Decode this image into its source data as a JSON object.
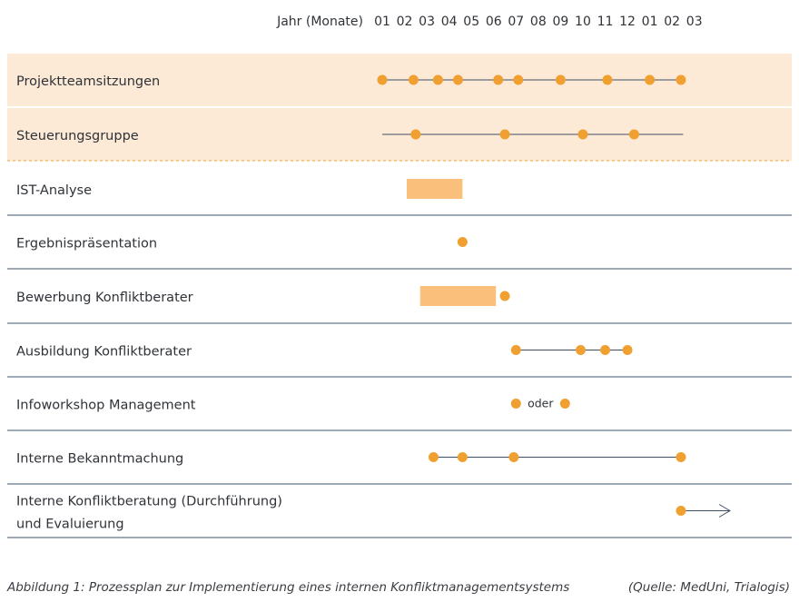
{
  "header": {
    "axis_label": "Jahr (Monate)",
    "months": [
      "01",
      "02",
      "03",
      "04",
      "05",
      "06",
      "07",
      "08",
      "09",
      "10",
      "11",
      "12",
      "01",
      "02",
      "03"
    ]
  },
  "colors": {
    "accent": "#f0a030",
    "highlight_band": "#fce9d6",
    "bar_fill": "#f9bf7b",
    "line": "#3f4e63",
    "divider": "#3f5670",
    "dashed": "#f0a030"
  },
  "rows": [
    {
      "label": "Projektteamsitzungen",
      "highlight": true,
      "line": [
        1,
        14.4
      ],
      "dots": [
        1,
        2.4,
        3.5,
        4.4,
        6.2,
        7.1,
        9.0,
        11.1,
        13.0,
        14.4
      ],
      "bars": []
    },
    {
      "label": "Steuerungsgruppe",
      "highlight": true,
      "line": [
        1,
        14.5
      ],
      "dots": [
        2.5,
        6.5,
        10.0,
        12.3
      ],
      "bars": []
    },
    {
      "label": "IST-Analyse",
      "highlight": false,
      "line": null,
      "dots": [],
      "bars": [
        [
          2.1,
          4.6
        ]
      ]
    },
    {
      "label": "Ergebnispräsentation",
      "highlight": false,
      "line": null,
      "dots": [
        4.6
      ],
      "bars": []
    },
    {
      "label": "Bewerbung Konfliktberater",
      "highlight": false,
      "line": null,
      "dots": [
        6.5
      ],
      "bars": [
        [
          2.7,
          6.1
        ]
      ]
    },
    {
      "label": "Ausbildung Konfliktberater",
      "highlight": false,
      "line": [
        7.0,
        12.0
      ],
      "dots": [
        7.0,
        9.9,
        11.0,
        12.0
      ],
      "bars": []
    },
    {
      "label": "Infoworkshop Management",
      "highlight": false,
      "line": null,
      "dots": [
        7.0,
        9.2
      ],
      "bars": [],
      "note": "oder"
    },
    {
      "label": "Interne Bekanntmachung",
      "highlight": false,
      "line": [
        3.3,
        14.4
      ],
      "dots": [
        3.3,
        4.6,
        6.9,
        14.4
      ],
      "bars": []
    },
    {
      "label": "Interne Konfliktberatung (Durchführung)",
      "label_line2": "und Evaluierung",
      "highlight": false,
      "line": null,
      "dots": [
        14.4
      ],
      "bars": [],
      "arrow": [
        14.4,
        16.6
      ]
    }
  ],
  "caption": {
    "left": "Abbildung 1: Prozessplan zur Implementierung eines internen Konfliktmanagementsystems",
    "right": "(Quelle: MedUni, Trialogis)"
  }
}
